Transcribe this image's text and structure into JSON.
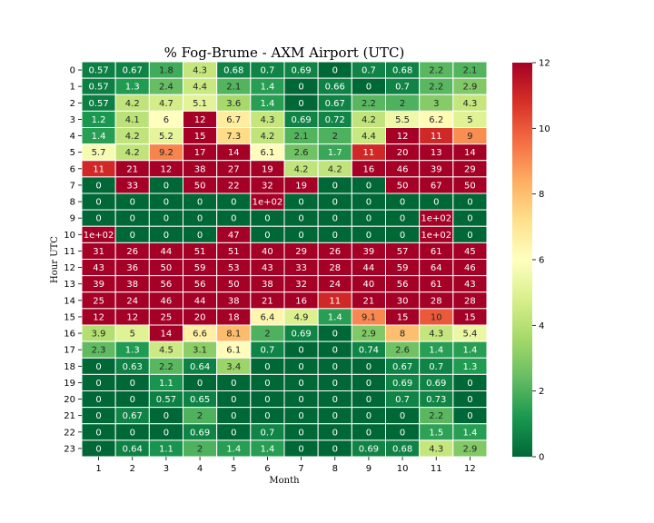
{
  "chart_data": {
    "type": "heatmap",
    "title": "% Fog-Brume - AXM Airport (UTC)",
    "xlabel": "Month",
    "ylabel": "Hour UTC",
    "x_categories": [
      "1",
      "2",
      "3",
      "4",
      "5",
      "6",
      "7",
      "8",
      "9",
      "10",
      "11",
      "12"
    ],
    "y_categories": [
      "0",
      "1",
      "2",
      "3",
      "4",
      "5",
      "6",
      "7",
      "8",
      "9",
      "10",
      "11",
      "12",
      "13",
      "14",
      "15",
      "16",
      "17",
      "18",
      "19",
      "20",
      "21",
      "22",
      "23"
    ],
    "values": [
      [
        0.57,
        0.67,
        1.8,
        4.3,
        0.68,
        0.7,
        0.69,
        0,
        0.7,
        0.68,
        2.2,
        2.1
      ],
      [
        0.57,
        1.3,
        2.4,
        4.4,
        2.1,
        1.4,
        0,
        0.66,
        0,
        0.7,
        2.2,
        2.9
      ],
      [
        0.57,
        4.2,
        4.7,
        5.1,
        3.6,
        1.4,
        0,
        0.67,
        2.2,
        2,
        3,
        4.3
      ],
      [
        1.2,
        4.1,
        6,
        12,
        6.7,
        4.3,
        0.69,
        0.72,
        4.2,
        5.5,
        6.2,
        5
      ],
      [
        1.4,
        4.2,
        5.2,
        15,
        7.3,
        4.2,
        2.1,
        2,
        4.4,
        12,
        11,
        9
      ],
      [
        5.7,
        4.2,
        9.2,
        17,
        14,
        6.1,
        2.6,
        1.7,
        11,
        20,
        13,
        14
      ],
      [
        11,
        21,
        12,
        38,
        27,
        19,
        4.2,
        4.2,
        16,
        46,
        39,
        29
      ],
      [
        0,
        33,
        0,
        50,
        22,
        32,
        19,
        0,
        0,
        50,
        67,
        50
      ],
      [
        0,
        0,
        0,
        0,
        0,
        100,
        0,
        0,
        0,
        0,
        0,
        0
      ],
      [
        0,
        0,
        0,
        0,
        0,
        0,
        0,
        0,
        0,
        0,
        100,
        0
      ],
      [
        100,
        0,
        0,
        0,
        47,
        0,
        0,
        0,
        0,
        0,
        100,
        0
      ],
      [
        31,
        26,
        44,
        51,
        51,
        40,
        29,
        26,
        39,
        57,
        61,
        45
      ],
      [
        43,
        36,
        50,
        59,
        53,
        43,
        33,
        28,
        44,
        59,
        64,
        46
      ],
      [
        39,
        38,
        56,
        56,
        50,
        38,
        32,
        24,
        40,
        56,
        61,
        43
      ],
      [
        25,
        24,
        46,
        44,
        38,
        21,
        16,
        11,
        21,
        30,
        28,
        28
      ],
      [
        12,
        12,
        25,
        20,
        18,
        6.4,
        4.9,
        1.4,
        9.1,
        15,
        10,
        15
      ],
      [
        3.9,
        5,
        14,
        6.6,
        8.1,
        2,
        0.69,
        0,
        2.9,
        8,
        4.3,
        5.4
      ],
      [
        2.3,
        1.3,
        4.5,
        3.1,
        6.1,
        0.7,
        0,
        0,
        0.74,
        2.6,
        1.4,
        1.4
      ],
      [
        0,
        0.63,
        2.2,
        0.64,
        3.4,
        0,
        0,
        0,
        0,
        0.67,
        0.7,
        1.3
      ],
      [
        0,
        0,
        1.1,
        0,
        0,
        0,
        0,
        0,
        0,
        0.69,
        0.69,
        0
      ],
      [
        0,
        0,
        0.57,
        0.65,
        0,
        0,
        0,
        0,
        0,
        0.7,
        0.73,
        0
      ],
      [
        0,
        0.67,
        0,
        2,
        0,
        0,
        0,
        0,
        0,
        0,
        2.2,
        0
      ],
      [
        0,
        0,
        0,
        0.69,
        0,
        0.7,
        0,
        0,
        0,
        0,
        1.5,
        1.4
      ],
      [
        0,
        0.64,
        1.1,
        2,
        1.4,
        1.4,
        0,
        0,
        0.69,
        0.68,
        4.3,
        2.9
      ]
    ],
    "labels": [
      [
        "0.57",
        "0.67",
        "1.8",
        "4.3",
        "0.68",
        "0.7",
        "0.69",
        "0",
        "0.7",
        "0.68",
        "2.2",
        "2.1"
      ],
      [
        "0.57",
        "1.3",
        "2.4",
        "4.4",
        "2.1",
        "1.4",
        "0",
        "0.66",
        "0",
        "0.7",
        "2.2",
        "2.9"
      ],
      [
        "0.57",
        "4.2",
        "4.7",
        "5.1",
        "3.6",
        "1.4",
        "0",
        "0.67",
        "2.2",
        "2",
        "3",
        "4.3"
      ],
      [
        "1.2",
        "4.1",
        "6",
        "12",
        "6.7",
        "4.3",
        "0.69",
        "0.72",
        "4.2",
        "5.5",
        "6.2",
        "5"
      ],
      [
        "1.4",
        "4.2",
        "5.2",
        "15",
        "7.3",
        "4.2",
        "2.1",
        "2",
        "4.4",
        "12",
        "11",
        "9"
      ],
      [
        "5.7",
        "4.2",
        "9.2",
        "17",
        "14",
        "6.1",
        "2.6",
        "1.7",
        "11",
        "20",
        "13",
        "14"
      ],
      [
        "11",
        "21",
        "12",
        "38",
        "27",
        "19",
        "4.2",
        "4.2",
        "16",
        "46",
        "39",
        "29"
      ],
      [
        "0",
        "33",
        "0",
        "50",
        "22",
        "32",
        "19",
        "0",
        "0",
        "50",
        "67",
        "50"
      ],
      [
        "0",
        "0",
        "0",
        "0",
        "0",
        "1e+02",
        "0",
        "0",
        "0",
        "0",
        "0",
        "0"
      ],
      [
        "0",
        "0",
        "0",
        "0",
        "0",
        "0",
        "0",
        "0",
        "0",
        "0",
        "1e+02",
        "0"
      ],
      [
        "1e+02",
        "0",
        "0",
        "0",
        "47",
        "0",
        "0",
        "0",
        "0",
        "0",
        "1e+02",
        "0"
      ],
      [
        "31",
        "26",
        "44",
        "51",
        "51",
        "40",
        "29",
        "26",
        "39",
        "57",
        "61",
        "45"
      ],
      [
        "43",
        "36",
        "50",
        "59",
        "53",
        "43",
        "33",
        "28",
        "44",
        "59",
        "64",
        "46"
      ],
      [
        "39",
        "38",
        "56",
        "56",
        "50",
        "38",
        "32",
        "24",
        "40",
        "56",
        "61",
        "43"
      ],
      [
        "25",
        "24",
        "46",
        "44",
        "38",
        "21",
        "16",
        "11",
        "21",
        "30",
        "28",
        "28"
      ],
      [
        "12",
        "12",
        "25",
        "20",
        "18",
        "6.4",
        "4.9",
        "1.4",
        "9.1",
        "15",
        "10",
        "15"
      ],
      [
        "3.9",
        "5",
        "14",
        "6.6",
        "8.1",
        "2",
        "0.69",
        "0",
        "2.9",
        "8",
        "4.3",
        "5.4"
      ],
      [
        "2.3",
        "1.3",
        "4.5",
        "3.1",
        "6.1",
        "0.7",
        "0",
        "0",
        "0.74",
        "2.6",
        "1.4",
        "1.4"
      ],
      [
        "0",
        "0.63",
        "2.2",
        "0.64",
        "3.4",
        "0",
        "0",
        "0",
        "0",
        "0.67",
        "0.7",
        "1.3"
      ],
      [
        "0",
        "0",
        "1.1",
        "0",
        "0",
        "0",
        "0",
        "0",
        "0",
        "0.69",
        "0.69",
        "0"
      ],
      [
        "0",
        "0",
        "0.57",
        "0.65",
        "0",
        "0",
        "0",
        "0",
        "0",
        "0.7",
        "0.73",
        "0"
      ],
      [
        "0",
        "0.67",
        "0",
        "2",
        "0",
        "0",
        "0",
        "0",
        "0",
        "0",
        "2.2",
        "0"
      ],
      [
        "0",
        "0",
        "0",
        "0.69",
        "0",
        "0.7",
        "0",
        "0",
        "0",
        "0",
        "1.5",
        "1.4"
      ],
      [
        "0",
        "0.64",
        "1.1",
        "2",
        "1.4",
        "1.4",
        "0",
        "0",
        "0.69",
        "0.68",
        "4.3",
        "2.9"
      ]
    ],
    "colormap": "RdYlGn_r",
    "vmin": 0,
    "vmax": 12,
    "colorbar_ticks": [
      "0",
      "2",
      "4",
      "6",
      "8",
      "10",
      "12"
    ],
    "cell_border_color": "#ffffff"
  }
}
